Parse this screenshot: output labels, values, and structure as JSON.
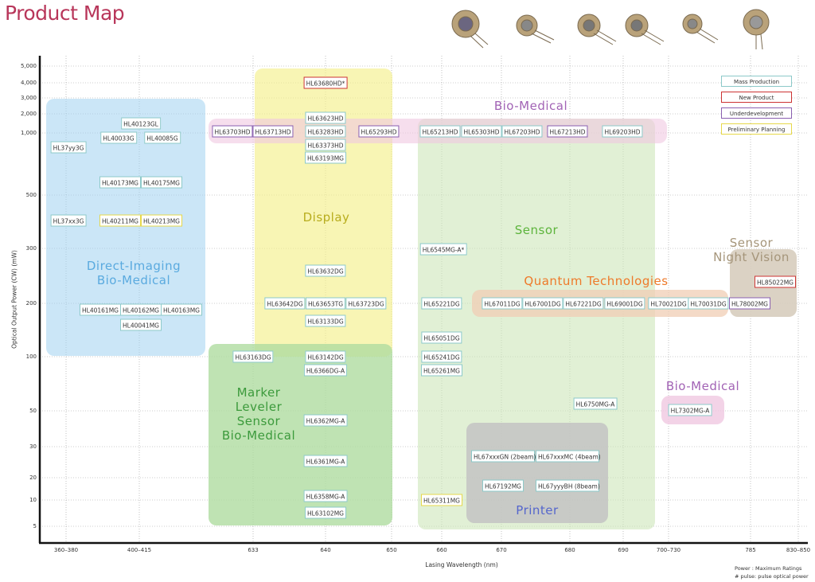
{
  "header": {
    "title": "Product Map"
  },
  "axes": {
    "y_label": "Optical Output Power (CW) (mW)",
    "x_label": "Lasing Wavelength (nm)",
    "yscale": "log",
    "grid": true,
    "yticks": [
      {
        "value": 5000,
        "label": "5,000"
      },
      {
        "value": 4000,
        "label": "4,000"
      },
      {
        "value": 3000,
        "label": "3,000"
      },
      {
        "value": 2000,
        "label": "2,000"
      },
      {
        "value": 1000,
        "label": "1,000"
      },
      500,
      300,
      200,
      100,
      50,
      30,
      20,
      10,
      5
    ],
    "xticks": [
      "360–380",
      "400–415",
      "633",
      "640",
      "650",
      "660",
      "670",
      "680",
      "690",
      "700–730",
      "785",
      "830–850"
    ]
  },
  "regions": [
    {
      "lines": [
        "Direct-Imaging",
        "Bio-Medical"
      ],
      "color": "#5aaadf",
      "fill": "rgba(160,210,240,0.55)"
    },
    {
      "lines": [
        "Display"
      ],
      "color": "#b8ad1e",
      "fill": "rgba(245,240,140,0.65)"
    },
    {
      "lines": [
        "Sensor"
      ],
      "color": "#5db43c",
      "fill": "rgba(205,230,185,0.6)"
    },
    {
      "lines": [
        "Bio-Medical"
      ],
      "color": "#a263b5",
      "fill": "rgba(240,200,225,0.6)"
    },
    {
      "lines": [
        "Marker",
        "Leveler",
        "Sensor",
        "Bio-Medical"
      ],
      "color": "#3c9a3c",
      "fill": "rgba(175,220,160,0.8)"
    },
    {
      "lines": [
        "Quantum Technologies"
      ],
      "color": "#ee7a2a",
      "fill": "rgba(240,205,180,0.75)"
    },
    {
      "lines": [
        "Sensor",
        "Night Vision"
      ],
      "color": "#a5957a",
      "fill": "rgba(215,205,190,0.9)"
    },
    {
      "lines": [
        "Bio-Medical"
      ],
      "color": "#a263b5",
      "fill": "rgba(240,200,225,0.8)"
    },
    {
      "lines": [
        "Printer"
      ],
      "color": "#5566cc",
      "fill": "rgba(195,195,195,0.85)"
    }
  ],
  "products": [
    {
      "label": "HL40123GL",
      "border": "#8cc9c9"
    },
    {
      "label": "HL40033G",
      "border": "#8cc9c9"
    },
    {
      "label": "HL40085G",
      "border": "#8cc9c9"
    },
    {
      "label": "HL37yy3G",
      "border": "#8cc9c9"
    },
    {
      "label": "HL40173MG",
      "border": "#8cc9c9"
    },
    {
      "label": "HL40175MG",
      "border": "#8cc9c9"
    },
    {
      "label": "HL37xx3G",
      "border": "#8cc9c9"
    },
    {
      "label": "HL40211MG",
      "border": "#e6d84a"
    },
    {
      "label": "HL40213MG",
      "border": "#e6d84a"
    },
    {
      "label": "HL40161MG",
      "border": "#8cc9c9"
    },
    {
      "label": "HL40162MG",
      "border": "#8cc9c9"
    },
    {
      "label": "HL40163MG",
      "border": "#8cc9c9"
    },
    {
      "label": "HL40041MG",
      "border": "#8cc9c9"
    },
    {
      "label": "HL63680HD*",
      "border": "#cc3333"
    },
    {
      "label": "HL63623HD",
      "border": "#8cc9c9"
    },
    {
      "label": "HL63283HD",
      "border": "#8cc9c9"
    },
    {
      "label": "HL63373HD",
      "border": "#8cc9c9"
    },
    {
      "label": "HL63193MG",
      "border": "#8cc9c9"
    },
    {
      "label": "HL63632DG",
      "border": "#8cc9c9"
    },
    {
      "label": "HL63642DG",
      "border": "#8cc9c9"
    },
    {
      "label": "HL63653TG",
      "border": "#8cc9c9"
    },
    {
      "label": "HL63723DG",
      "border": "#8cc9c9"
    },
    {
      "label": "HL63133DG",
      "border": "#8cc9c9"
    },
    {
      "label": "HL63703HD",
      "border": "#8a5fb0"
    },
    {
      "label": "HL63713HD",
      "border": "#8a5fb0"
    },
    {
      "label": "HL65293HD",
      "border": "#8a5fb0"
    },
    {
      "label": "HL65213HD",
      "border": "#8cc9c9"
    },
    {
      "label": "HL65303HD",
      "border": "#8cc9c9"
    },
    {
      "label": "HL67203HD",
      "border": "#8cc9c9"
    },
    {
      "label": "HL67213HD",
      "border": "#8a5fb0"
    },
    {
      "label": "HL69203HD",
      "border": "#8cc9c9"
    },
    {
      "label": "HL63163DG",
      "border": "#8cc9c9"
    },
    {
      "label": "HL63142DG",
      "border": "#8cc9c9"
    },
    {
      "label": "HL6366DG-A",
      "border": "#8cc9c9"
    },
    {
      "label": "HL6362MG-A",
      "border": "#8cc9c9"
    },
    {
      "label": "HL6361MG-A",
      "border": "#8cc9c9"
    },
    {
      "label": "HL6358MG-A",
      "border": "#8cc9c9"
    },
    {
      "label": "HL63102MG",
      "border": "#8cc9c9"
    },
    {
      "label": "HL6545MG-A*",
      "border": "#8cc9c9"
    },
    {
      "label": "HL65221DG",
      "border": "#8cc9c9"
    },
    {
      "label": "HL65051DG",
      "border": "#8cc9c9"
    },
    {
      "label": "HL65241DG",
      "border": "#8cc9c9"
    },
    {
      "label": "HL65261MG",
      "border": "#8cc9c9"
    },
    {
      "label": "HL65311MG",
      "border": "#e6d84a"
    },
    {
      "label": "HL6750MG-A",
      "border": "#8cc9c9"
    },
    {
      "label": "HL67011DG",
      "border": "#8cc9c9"
    },
    {
      "label": "HL67001DG",
      "border": "#8cc9c9"
    },
    {
      "label": "HL67221DG",
      "border": "#8cc9c9"
    },
    {
      "label": "HL69001DG",
      "border": "#8cc9c9"
    },
    {
      "label": "HL70021DG",
      "border": "#8cc9c9"
    },
    {
      "label": "HL70031DG",
      "border": "#8cc9c9"
    },
    {
      "label": "HL78002MG",
      "border": "#8a5fb0"
    },
    {
      "label": "HL85022MG",
      "border": "#cc3333"
    },
    {
      "label": "HL7302MG-A",
      "border": "#8cc9c9"
    },
    {
      "label": "HL67xxxGN (2beam)",
      "border": "#8cc9c9"
    },
    {
      "label": "HL67xxxMC (4beam)",
      "border": "#8cc9c9"
    },
    {
      "label": "HL67192MG",
      "border": "#8cc9c9"
    },
    {
      "label": "HL67yyyBH (8beam)",
      "border": "#8cc9c9"
    }
  ],
  "legend": [
    {
      "label": "Mass Production",
      "border": "#8cc9c9"
    },
    {
      "label": "New Product",
      "border": "#cc3333"
    },
    {
      "label": "Underdevelopment",
      "border": "#8a5fb0"
    },
    {
      "label": "Preliminary Planning",
      "border": "#e6d84a"
    }
  ],
  "footnotes": [
    "Power : Maximum Ratings",
    "# pulse: pulse optical power"
  ]
}
